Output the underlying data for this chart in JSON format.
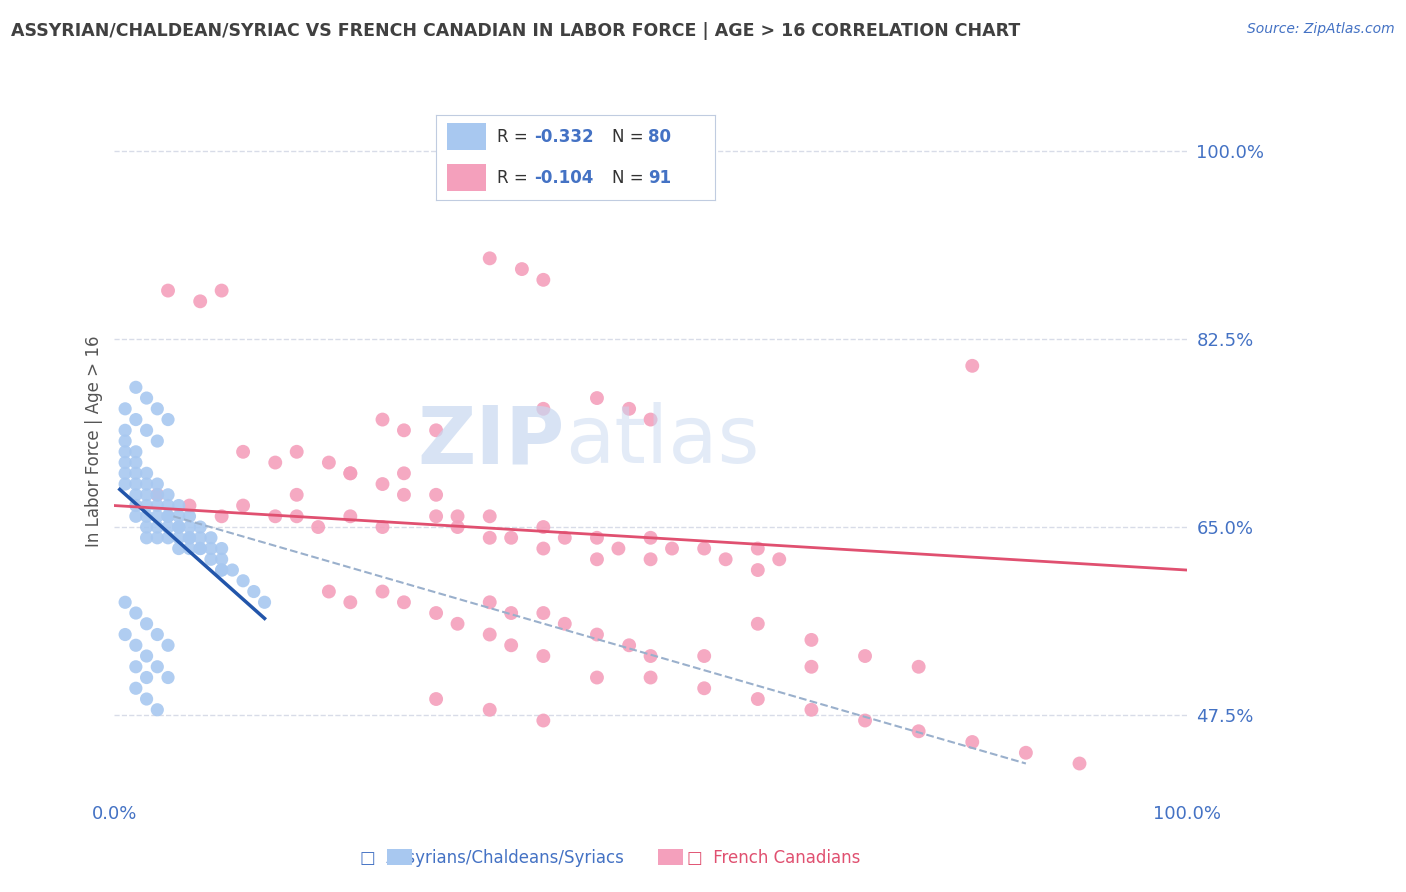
{
  "title": "ASSYRIAN/CHALDEAN/SYRIAC VS FRENCH CANADIAN IN LABOR FORCE | AGE > 16 CORRELATION CHART",
  "source_text": "Source: ZipAtlas.com",
  "ylabel": "In Labor Force | Age > 16",
  "xlim": [
    0.0,
    1.0
  ],
  "ylim": [
    0.4,
    1.06
  ],
  "yticks": [
    0.475,
    0.65,
    0.825,
    1.0
  ],
  "ytick_labels": [
    "47.5%",
    "65.0%",
    "82.5%",
    "100.0%"
  ],
  "xticks": [
    0.0,
    1.0
  ],
  "xtick_labels": [
    "0.0%",
    "100.0%"
  ],
  "blue_color": "#a8c8f0",
  "pink_color": "#f4a0bc",
  "blue_trend_color": "#2255aa",
  "pink_trend_color": "#e05070",
  "dashed_color": "#9ab0cc",
  "background_color": "#ffffff",
  "grid_color": "#d8dce8",
  "title_color": "#404040",
  "axis_color": "#4472c4",
  "watermark_color": "#dde8f5",
  "legend_blue_fill": "#a8c8f0",
  "legend_pink_fill": "#f4a0bc",
  "legend_text_dark": "#333333",
  "legend_text_blue": "#4472c4",
  "blue_scatter_x": [
    0.01,
    0.01,
    0.01,
    0.01,
    0.01,
    0.01,
    0.02,
    0.02,
    0.02,
    0.02,
    0.02,
    0.02,
    0.02,
    0.03,
    0.03,
    0.03,
    0.03,
    0.03,
    0.03,
    0.03,
    0.04,
    0.04,
    0.04,
    0.04,
    0.04,
    0.04,
    0.05,
    0.05,
    0.05,
    0.05,
    0.05,
    0.06,
    0.06,
    0.06,
    0.06,
    0.06,
    0.07,
    0.07,
    0.07,
    0.07,
    0.08,
    0.08,
    0.08,
    0.09,
    0.09,
    0.1,
    0.1,
    0.1,
    0.11,
    0.12,
    0.13,
    0.14,
    0.01,
    0.02,
    0.03,
    0.04,
    0.05,
    0.01,
    0.02,
    0.03,
    0.04,
    0.05,
    0.02,
    0.03,
    0.04,
    0.02,
    0.03,
    0.01,
    0.02,
    0.03,
    0.04,
    0.02,
    0.03,
    0.04,
    0.05,
    0.05,
    0.06,
    0.07,
    0.08,
    0.09,
    0.1
  ],
  "blue_scatter_y": [
    0.74,
    0.73,
    0.72,
    0.71,
    0.7,
    0.69,
    0.72,
    0.71,
    0.7,
    0.69,
    0.68,
    0.67,
    0.66,
    0.7,
    0.69,
    0.68,
    0.67,
    0.66,
    0.65,
    0.64,
    0.69,
    0.68,
    0.67,
    0.66,
    0.65,
    0.64,
    0.68,
    0.67,
    0.66,
    0.65,
    0.64,
    0.67,
    0.66,
    0.65,
    0.64,
    0.63,
    0.66,
    0.65,
    0.64,
    0.63,
    0.65,
    0.64,
    0.63,
    0.64,
    0.63,
    0.63,
    0.62,
    0.61,
    0.61,
    0.6,
    0.59,
    0.58,
    0.58,
    0.57,
    0.56,
    0.55,
    0.54,
    0.55,
    0.54,
    0.53,
    0.52,
    0.51,
    0.5,
    0.49,
    0.48,
    0.52,
    0.51,
    0.76,
    0.75,
    0.74,
    0.73,
    0.78,
    0.77,
    0.76,
    0.75,
    0.66,
    0.65,
    0.64,
    0.63,
    0.62,
    0.61
  ],
  "pink_scatter_x": [
    0.04,
    0.07,
    0.1,
    0.12,
    0.15,
    0.17,
    0.17,
    0.19,
    0.22,
    0.25,
    0.22,
    0.25,
    0.27,
    0.27,
    0.3,
    0.3,
    0.32,
    0.32,
    0.35,
    0.35,
    0.37,
    0.4,
    0.4,
    0.42,
    0.45,
    0.45,
    0.47,
    0.5,
    0.5,
    0.52,
    0.55,
    0.57,
    0.6,
    0.6,
    0.62,
    0.25,
    0.27,
    0.3,
    0.4,
    0.45,
    0.48,
    0.5,
    0.12,
    0.15,
    0.17,
    0.2,
    0.22,
    0.05,
    0.08,
    0.1,
    0.35,
    0.37,
    0.4,
    0.42,
    0.45,
    0.48,
    0.5,
    0.2,
    0.22,
    0.25,
    0.27,
    0.3,
    0.32,
    0.35,
    0.37,
    0.4,
    0.45,
    0.5,
    0.55,
    0.6,
    0.65,
    0.7,
    0.75,
    0.8,
    0.85,
    0.9,
    0.55,
    0.65,
    0.8,
    0.3,
    0.35,
    0.4,
    0.35,
    0.38,
    0.4,
    0.6,
    0.65,
    0.7,
    0.75
  ],
  "pink_scatter_y": [
    0.68,
    0.67,
    0.66,
    0.67,
    0.66,
    0.68,
    0.66,
    0.65,
    0.66,
    0.65,
    0.7,
    0.69,
    0.7,
    0.68,
    0.68,
    0.66,
    0.66,
    0.65,
    0.66,
    0.64,
    0.64,
    0.65,
    0.63,
    0.64,
    0.64,
    0.62,
    0.63,
    0.64,
    0.62,
    0.63,
    0.63,
    0.62,
    0.63,
    0.61,
    0.62,
    0.75,
    0.74,
    0.74,
    0.76,
    0.77,
    0.76,
    0.75,
    0.72,
    0.71,
    0.72,
    0.71,
    0.7,
    0.87,
    0.86,
    0.87,
    0.58,
    0.57,
    0.57,
    0.56,
    0.55,
    0.54,
    0.53,
    0.59,
    0.58,
    0.59,
    0.58,
    0.57,
    0.56,
    0.55,
    0.54,
    0.53,
    0.51,
    0.51,
    0.5,
    0.49,
    0.48,
    0.47,
    0.46,
    0.45,
    0.44,
    0.43,
    0.53,
    0.52,
    0.8,
    0.49,
    0.48,
    0.47,
    0.9,
    0.89,
    0.88,
    0.56,
    0.545,
    0.53,
    0.52
  ],
  "blue_trend_x": [
    0.005,
    0.14
  ],
  "blue_trend_y": [
    0.685,
    0.565
  ],
  "pink_trend_x": [
    0.0,
    1.0
  ],
  "pink_trend_y": [
    0.67,
    0.61
  ],
  "dashed_trend_x": [
    0.055,
    0.85
  ],
  "dashed_trend_y": [
    0.66,
    0.43
  ]
}
